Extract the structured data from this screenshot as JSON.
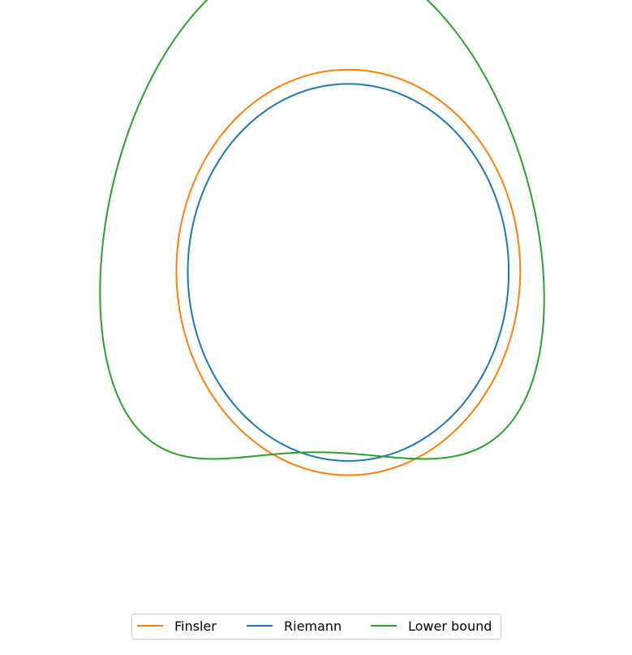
{
  "chart_data": {
    "type": "line",
    "title": "",
    "xlabel": "",
    "ylabel": "",
    "axes_visible": false,
    "aspect": "equal",
    "xlim": [
      -2.19,
      2.19
    ],
    "ylim": [
      -2.49,
      1.97
    ],
    "legend": {
      "placement": "bottom-center",
      "ncol": 3
    },
    "series": [
      {
        "name": "Finsler",
        "color": "#ff7f0e",
        "shape": "closed-curve",
        "parametric": {
          "cx": 0.27,
          "cy": -0.07,
          "rx": 1.395,
          "ry": 1.565,
          "sx": 0.132,
          "sy": -0.138,
          "phi": 0.0
        }
      },
      {
        "name": "Riemann",
        "color": "#1f77b4",
        "shape": "closed-curve",
        "parametric": {
          "cx": 0.27,
          "cy": -0.07,
          "rx": 1.3,
          "ry": 1.455,
          "sx": 0.13,
          "sy": -0.138,
          "phi": 0.0
        }
      },
      {
        "name": "Lower bound",
        "color": "#2ca02c",
        "shape": "closed-curve",
        "parametric": {
          "cx": 0.03,
          "cy": 0.01,
          "rx": 1.783,
          "ry": 1.94,
          "sx": 0.22,
          "sy": -0.61,
          "phi": 0.12
        }
      }
    ]
  }
}
